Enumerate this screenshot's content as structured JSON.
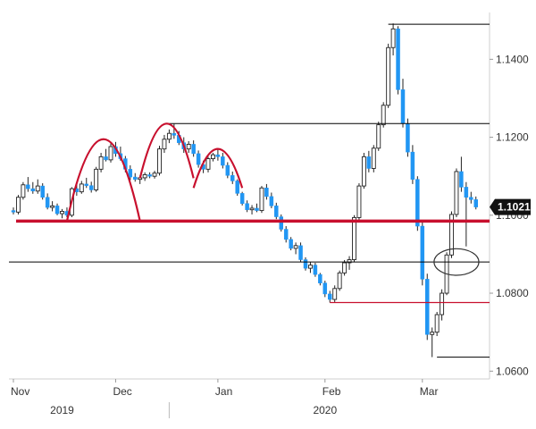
{
  "chart_data": {
    "type": "candlestick",
    "colors": {
      "up": "#ffffff",
      "down": "#2196f3",
      "wick": "#222222",
      "support": "#c8102e",
      "level": "#000000",
      "pattern": "#c8102e",
      "last_price_bg": "#111111",
      "last_price_text": "#ffffff"
    },
    "y_axis": {
      "min": 1.058,
      "max": 1.152,
      "ticks": [
        {
          "value": 1.14,
          "label": "1.1400"
        },
        {
          "value": 1.12,
          "label": "1.1200"
        },
        {
          "value": 1.1,
          "label": "1.1000"
        },
        {
          "value": 1.08,
          "label": "1.0800"
        },
        {
          "value": 1.06,
          "label": "1.0600"
        }
      ]
    },
    "x_axis": {
      "months": [
        {
          "label": "Nov",
          "index": 0
        },
        {
          "label": "Dec",
          "index": 21
        },
        {
          "label": "Jan",
          "index": 42
        },
        {
          "label": "Feb",
          "index": 64
        },
        {
          "label": "Mar",
          "index": 84
        }
      ],
      "years": [
        {
          "label": "2019",
          "index": 10
        },
        {
          "label": "2020",
          "index": 64
        }
      ],
      "year_divider_index": 32
    },
    "last_price": {
      "value": 1.1021,
      "label": "1.1021"
    },
    "candles": [
      [
        1.1012,
        1.102,
        1.1002,
        1.1008
      ],
      [
        1.1008,
        1.1052,
        1.1002,
        1.1046
      ],
      [
        1.1046,
        1.1085,
        1.104,
        1.1078
      ],
      [
        1.1078,
        1.1098,
        1.106,
        1.1068
      ],
      [
        1.1068,
        1.1085,
        1.1055,
        1.1062
      ],
      [
        1.1062,
        1.1092,
        1.1055,
        1.1075
      ],
      [
        1.1075,
        1.1082,
        1.104,
        1.1046
      ],
      [
        1.1046,
        1.1056,
        1.1015,
        1.102
      ],
      [
        1.102,
        1.1036,
        1.101,
        1.1024
      ],
      [
        1.1024,
        1.103,
        1.1,
        1.1004
      ],
      [
        1.1004,
        1.1016,
        1.0992,
        1.101
      ],
      [
        1.101,
        1.102,
        1.0995,
        1.1
      ],
      [
        1.1,
        1.1072,
        1.0995,
        1.1068
      ],
      [
        1.1068,
        1.1078,
        1.105,
        1.106
      ],
      [
        1.106,
        1.1088,
        1.1055,
        1.108
      ],
      [
        1.108,
        1.1096,
        1.107,
        1.1076
      ],
      [
        1.1076,
        1.1086,
        1.1058,
        1.1065
      ],
      [
        1.1065,
        1.1124,
        1.106,
        1.1118
      ],
      [
        1.1118,
        1.116,
        1.111,
        1.115
      ],
      [
        1.115,
        1.117,
        1.1138,
        1.1142
      ],
      [
        1.1142,
        1.1185,
        1.1135,
        1.1176
      ],
      [
        1.1176,
        1.1188,
        1.115,
        1.1158
      ],
      [
        1.1158,
        1.1176,
        1.114,
        1.1145
      ],
      [
        1.1145,
        1.1152,
        1.111,
        1.1118
      ],
      [
        1.1118,
        1.1128,
        1.109,
        1.1098
      ],
      [
        1.1098,
        1.1108,
        1.1086,
        1.1092
      ],
      [
        1.1092,
        1.1102,
        1.108,
        1.1096
      ],
      [
        1.1096,
        1.111,
        1.1088,
        1.1104
      ],
      [
        1.1104,
        1.111,
        1.1095,
        1.11
      ],
      [
        1.11,
        1.1114,
        1.1094,
        1.1108
      ],
      [
        1.1108,
        1.1178,
        1.1102,
        1.117
      ],
      [
        1.117,
        1.1206,
        1.116,
        1.1195
      ],
      [
        1.1195,
        1.122,
        1.1185,
        1.121
      ],
      [
        1.121,
        1.1234,
        1.1196,
        1.1205
      ],
      [
        1.1205,
        1.1216,
        1.118,
        1.1186
      ],
      [
        1.1186,
        1.12,
        1.116,
        1.117
      ],
      [
        1.117,
        1.119,
        1.116,
        1.1182
      ],
      [
        1.1182,
        1.1192,
        1.115,
        1.1158
      ],
      [
        1.1158,
        1.1166,
        1.1122,
        1.113
      ],
      [
        1.113,
        1.114,
        1.1108,
        1.1118
      ],
      [
        1.1118,
        1.115,
        1.111,
        1.1145
      ],
      [
        1.1145,
        1.116,
        1.1138,
        1.1155
      ],
      [
        1.1155,
        1.1172,
        1.114,
        1.115
      ],
      [
        1.115,
        1.116,
        1.112,
        1.1128
      ],
      [
        1.1128,
        1.1136,
        1.1095,
        1.1102
      ],
      [
        1.1102,
        1.1112,
        1.108,
        1.1088
      ],
      [
        1.1088,
        1.1092,
        1.105,
        1.1056
      ],
      [
        1.1056,
        1.106,
        1.1025,
        1.103
      ],
      [
        1.103,
        1.1038,
        1.1008,
        1.1014
      ],
      [
        1.1014,
        1.1026,
        1.1002,
        1.1018
      ],
      [
        1.1018,
        1.103,
        1.1008,
        1.1012
      ],
      [
        1.1012,
        1.1075,
        1.1006,
        1.107
      ],
      [
        1.107,
        1.108,
        1.104,
        1.1048
      ],
      [
        1.1048,
        1.1058,
        1.1018,
        1.1024
      ],
      [
        1.1024,
        1.1032,
        1.099,
        1.0996
      ],
      [
        1.0996,
        1.1002,
        1.0958,
        1.0964
      ],
      [
        1.0964,
        1.0972,
        1.093,
        1.0938
      ],
      [
        1.0938,
        1.0944,
        1.091,
        1.0915
      ],
      [
        1.0915,
        1.093,
        1.09,
        1.0922
      ],
      [
        1.0922,
        1.093,
        1.088,
        1.0886
      ],
      [
        1.0886,
        1.0892,
        1.0858,
        1.0864
      ],
      [
        1.0864,
        1.088,
        1.0852,
        1.0872
      ],
      [
        1.0872,
        1.0878,
        1.0842,
        1.0848
      ],
      [
        1.0848,
        1.0852,
        1.082,
        1.0826
      ],
      [
        1.0826,
        1.0832,
        1.079,
        1.0798
      ],
      [
        1.0798,
        1.0806,
        1.0776,
        1.0784
      ],
      [
        1.0784,
        1.082,
        1.0776,
        1.0812
      ],
      [
        1.0812,
        1.0858,
        1.0806,
        1.0852
      ],
      [
        1.0852,
        1.0885,
        1.0845,
        1.0878
      ],
      [
        1.0878,
        1.0895,
        1.086,
        1.0886
      ],
      [
        1.0886,
        1.1,
        1.088,
        1.0994
      ],
      [
        1.0994,
        1.1082,
        1.0988,
        1.1075
      ],
      [
        1.1075,
        1.116,
        1.1068,
        1.115
      ],
      [
        1.115,
        1.1165,
        1.111,
        1.112
      ],
      [
        1.112,
        1.118,
        1.111,
        1.1172
      ],
      [
        1.1172,
        1.124,
        1.1165,
        1.1232
      ],
      [
        1.1232,
        1.129,
        1.1225,
        1.1282
      ],
      [
        1.1282,
        1.144,
        1.1275,
        1.143
      ],
      [
        1.143,
        1.1492,
        1.141,
        1.1478
      ],
      [
        1.1478,
        1.1485,
        1.131,
        1.1322
      ],
      [
        1.1322,
        1.135,
        1.1225,
        1.1235
      ],
      [
        1.1235,
        1.1248,
        1.115,
        1.1162
      ],
      [
        1.1162,
        1.118,
        1.108,
        1.1092
      ],
      [
        1.1092,
        1.11,
        1.096,
        1.0972
      ],
      [
        1.0972,
        1.0985,
        1.082,
        1.0836
      ],
      [
        1.0836,
        1.085,
        1.068,
        1.0694
      ],
      [
        1.0694,
        1.0712,
        1.0636,
        1.07
      ],
      [
        1.07,
        1.0752,
        1.069,
        1.0745
      ],
      [
        1.0745,
        1.081,
        1.073,
        1.08
      ],
      [
        1.08,
        1.0905,
        1.0795,
        1.0898
      ],
      [
        1.0898,
        1.101,
        1.089,
        1.1002
      ],
      [
        1.1002,
        1.112,
        1.0995,
        1.1112
      ],
      [
        1.1112,
        1.115,
        1.106,
        1.1072
      ],
      [
        1.1072,
        1.1085,
        1.092,
        1.1046
      ],
      [
        1.1046,
        1.106,
        1.103,
        1.104
      ],
      [
        1.104,
        1.1048,
        1.1015,
        1.1021
      ]
    ],
    "overlays": {
      "support_line": {
        "value": 1.0985,
        "from": 0,
        "to": 97
      },
      "level_lines": [
        {
          "name": "high",
          "value": 1.149,
          "from": 77,
          "to": 97
        },
        {
          "name": "upper",
          "value": 1.1235,
          "from": 32,
          "to": 97
        },
        {
          "name": "middle",
          "value": 1.088,
          "from": 0,
          "to": 97
        },
        {
          "name": "low",
          "value": 1.0636,
          "from": 87,
          "to": 97
        }
      ],
      "feb_low_line": {
        "value": 1.0776,
        "from": 65,
        "to": 97
      },
      "ellipse": {
        "center_index": 91,
        "value": 1.088,
        "half_width_bars": 4.6,
        "half_height_value": 0.0034
      },
      "arcs": [
        {
          "from": 11,
          "to": 26,
          "base": 1.0985,
          "peak": 1.1195
        },
        {
          "from": 26,
          "to": 37,
          "base": 1.1095,
          "peak": 1.1235
        },
        {
          "from": 37,
          "to": 47,
          "base": 1.107,
          "peak": 1.117
        }
      ]
    }
  }
}
